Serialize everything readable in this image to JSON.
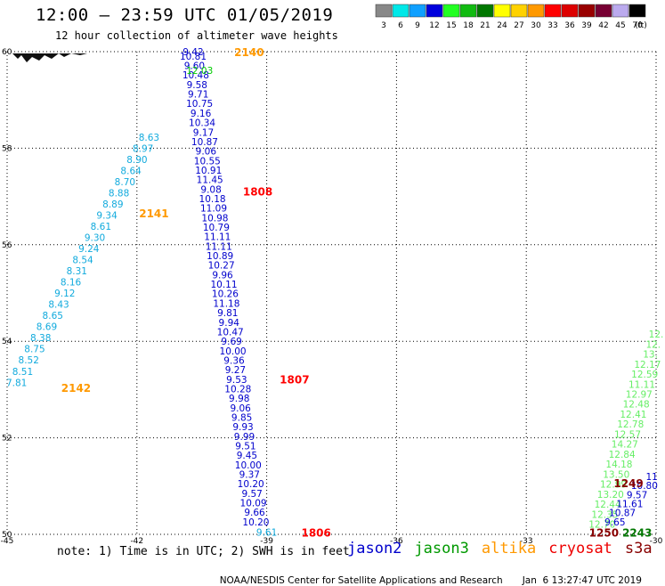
{
  "header": {
    "title": "12:00 – 23:59 UTC 01/05/2019",
    "subtitle": "12 hour collection of altimeter wave heights"
  },
  "legend": {
    "unit": "(ft)",
    "bins": [
      {
        "label": "3",
        "color": "#888888"
      },
      {
        "label": "6",
        "color": "#00e8e8"
      },
      {
        "label": "9",
        "color": "#0fa0ff"
      },
      {
        "label": "12",
        "color": "#0000dd"
      },
      {
        "label": "15",
        "color": "#22ff22"
      },
      {
        "label": "18",
        "color": "#11bb11"
      },
      {
        "label": "21",
        "color": "#007700"
      },
      {
        "label": "24",
        "color": "#ffff00"
      },
      {
        "label": "27",
        "color": "#ffd200"
      },
      {
        "label": "30",
        "color": "#ff9900"
      },
      {
        "label": "33",
        "color": "#ff0000"
      },
      {
        "label": "36",
        "color": "#dd0000"
      },
      {
        "label": "39",
        "color": "#990000"
      },
      {
        "label": "42",
        "color": "#770033"
      },
      {
        "label": "45",
        "color": "#bbaaee"
      },
      {
        "label": "70",
        "color": "#000000"
      }
    ]
  },
  "note": "note: 1) Time is in UTC; 2) SWH is in feet",
  "satellites": [
    {
      "name": "jason2",
      "color": "#0000cc"
    },
    {
      "name": "jason3",
      "color": "#009900"
    },
    {
      "name": "altika",
      "color": "#ff9900"
    },
    {
      "name": "cryosat",
      "color": "#ee0000"
    },
    {
      "name": "s3a",
      "color": "#880000"
    }
  ],
  "footer": {
    "credit": "NOAA/NESDIS Center for Satellite Applications and Research",
    "timestamp": "Jan  6 13:27:47 UTC 2019"
  },
  "chart_data": {
    "type": "scatter",
    "xlim": [
      -45,
      -30
    ],
    "ylim": [
      50,
      60
    ],
    "x_ticks": [
      "-45",
      "-42",
      "-39",
      "-36",
      "-33",
      "-30"
    ],
    "x_tick_values": [
      -45,
      -42,
      -39,
      -36,
      -33,
      -30
    ],
    "y_ticks": [
      "50",
      "52",
      "54",
      "56",
      "58",
      "60"
    ],
    "y_tick_values": [
      50,
      52,
      54,
      56,
      58,
      60
    ],
    "grid": true,
    "series": [
      {
        "name": "jason2",
        "color": "#0000cc",
        "lon_start": -40.7,
        "lat_start": 59.91,
        "lon_end": -39.25,
        "lat_end": 50.26,
        "values": [
          "10.81",
          "9.60",
          "10.48",
          "9.58",
          "9.71",
          "10.75",
          "9.16",
          "10.34",
          "9.17",
          "10.87",
          "9.06",
          "10.55",
          "10.91",
          "11.45",
          "9.08",
          "10.18",
          "11.09",
          "10.98",
          "10.79",
          "11.11",
          "11.11",
          "10.89",
          "10.27",
          "9.96",
          "10.11",
          "10.26",
          "11.18",
          "9.81",
          "9.94",
          "10.47",
          "9.69",
          "10.00",
          "9.36",
          "9.27",
          "9.53",
          "10.28",
          "9.98",
          "9.06",
          "9.85",
          "9.93",
          "9.99",
          "9.51",
          "9.45",
          "10.00",
          "9.37",
          "10.20",
          "9.57",
          "10.09",
          "9.66",
          "10.20"
        ]
      },
      {
        "name": "jason2",
        "color": "#0000cc",
        "points": [
          {
            "value": "9.42",
            "lon": -40.7,
            "lat": 60.0
          }
        ]
      },
      {
        "name": "jason3",
        "color": "#00cc00",
        "points": [
          {
            "value": "12.03",
            "lon": -40.55,
            "lat": 59.61
          }
        ]
      },
      {
        "name": "altika",
        "color": "#11aadd",
        "lon_start": -41.72,
        "lat_start": 58.23,
        "lon_end": -44.78,
        "lat_end": 53.15,
        "values": [
          "8.63",
          "8.97",
          "8.90",
          "8.64",
          "8.70",
          "8.88",
          "8.89",
          "9.34",
          "8.61",
          "9.30",
          "9.24",
          "8.54",
          "8.31",
          "8.16",
          "9.12",
          "8.43",
          "8.65",
          "8.69",
          "8.38",
          "8.75",
          "8.52",
          "8.51",
          "7.81"
        ]
      },
      {
        "name": "altika",
        "color": "#11aadd",
        "points": [
          {
            "value": "9.61",
            "lon": -39.0,
            "lat": 50.05
          }
        ]
      },
      {
        "name": "jason3",
        "color": "#66ee66",
        "lon_start": -30.0,
        "lat_start": 54.15,
        "lon_end": -31.25,
        "lat_end": 50.21,
        "values": [
          "12.",
          "12.",
          "13.",
          "12.17",
          "12.59",
          "11.11",
          "12.97",
          "12.48",
          "12.41",
          "12.78",
          "12.57",
          "14.27",
          "12.84",
          "14.18",
          "13.50",
          "12.99",
          "13.20",
          "12.44",
          "12.35",
          "12.70"
        ]
      },
      {
        "name": "jason2",
        "color": "#0000cc",
        "lon_start": -30.1,
        "lat_start": 51.2,
        "lon_end": -30.95,
        "lat_end": 50.26,
        "values": [
          "11",
          "10.80",
          "9.57",
          "11.61",
          "10.87",
          "9.65"
        ]
      }
    ],
    "pass_labels": [
      {
        "text": "2140",
        "lon": -39.75,
        "lat": 60.0,
        "color": "#ff9900"
      },
      {
        "text": "1808",
        "lon": -39.55,
        "lat": 57.11,
        "color": "#ff0000"
      },
      {
        "text": "2141",
        "lon": -41.95,
        "lat": 56.66,
        "color": "#ff9900"
      },
      {
        "text": "1807",
        "lon": -38.7,
        "lat": 53.22,
        "color": "#ff0000"
      },
      {
        "text": "2142",
        "lon": -43.75,
        "lat": 53.04,
        "color": "#ff9900"
      },
      {
        "text": "1806",
        "lon": -38.2,
        "lat": 50.05,
        "color": "#ff0000"
      },
      {
        "text": "1249",
        "lon": -30.98,
        "lat": 51.07,
        "color": "#880000"
      },
      {
        "text": "1250",
        "lon": -31.55,
        "lat": 50.05,
        "color": "#880000"
      },
      {
        "text": "2243",
        "lon": -30.78,
        "lat": 50.05,
        "color": "#007700"
      }
    ]
  }
}
